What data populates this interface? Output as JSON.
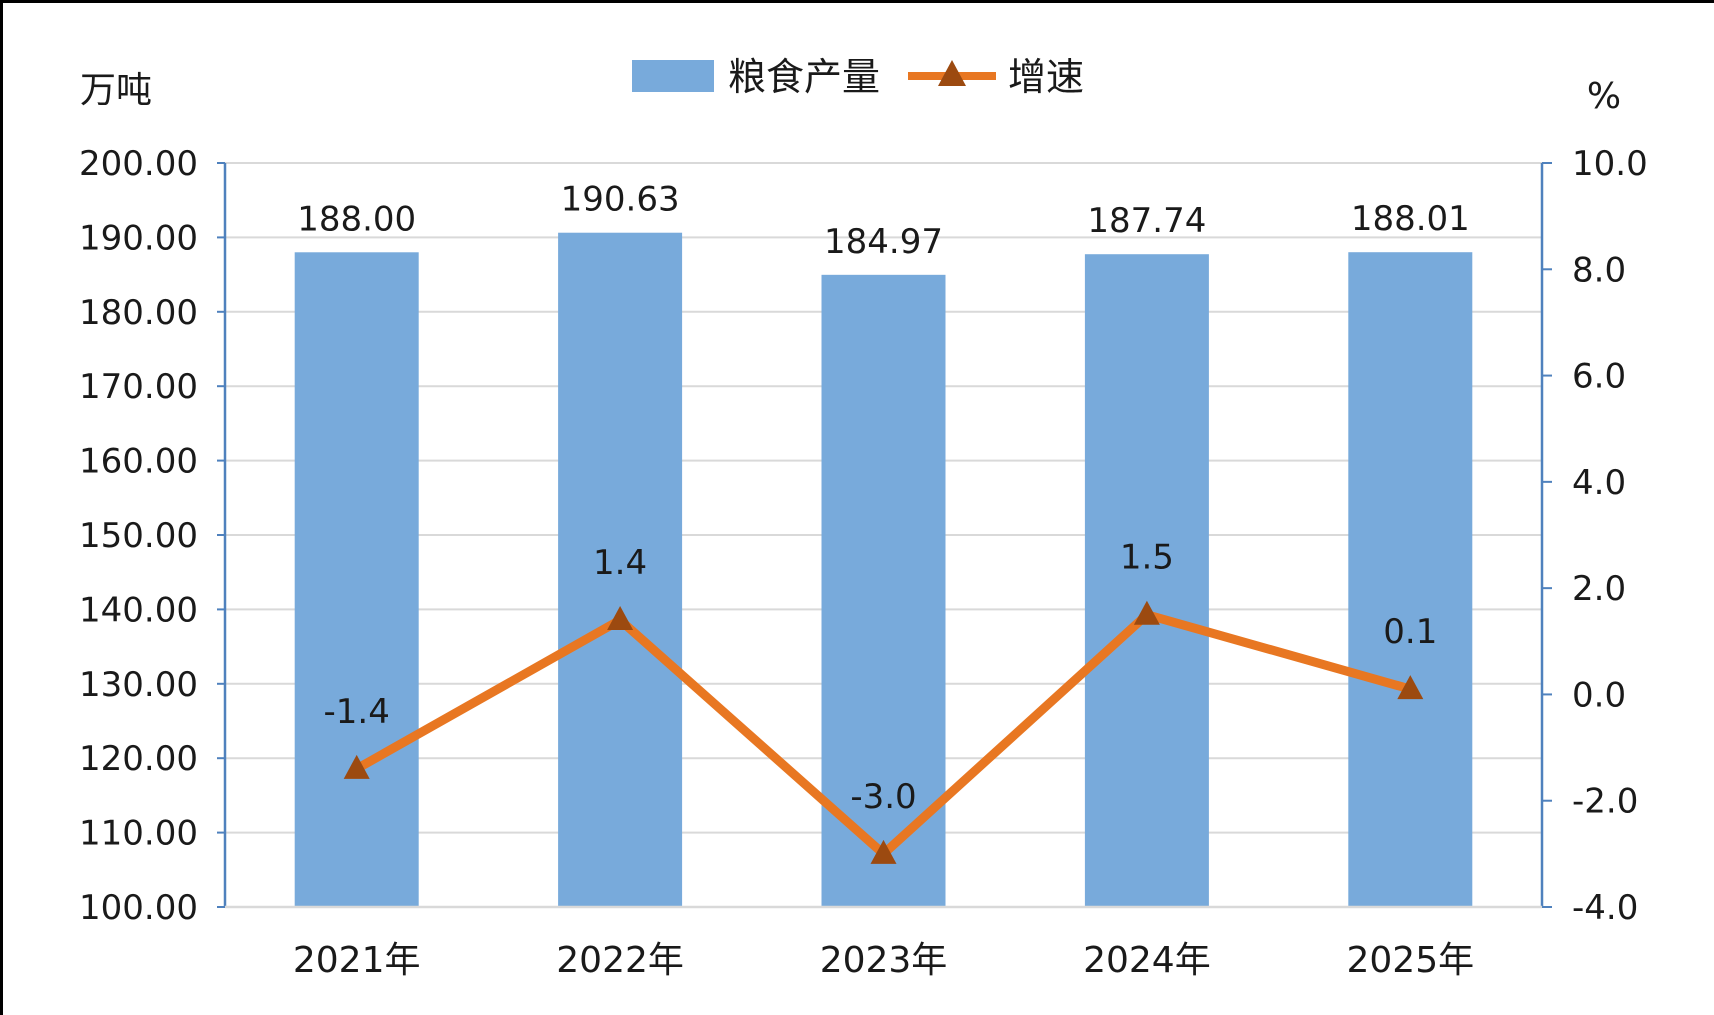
{
  "chart_data": {
    "type": "bar",
    "categories": [
      "2021年",
      "2022年",
      "2023年",
      "2024年",
      "2025年"
    ],
    "series": [
      {
        "name": "粮食产量",
        "type": "bar",
        "axis": "left",
        "values": [
          188.0,
          190.63,
          184.97,
          187.74,
          188.01
        ],
        "labels": [
          "188.00",
          "190.63",
          "184.97",
          "187.74",
          "188.01"
        ],
        "color": "#78aadb"
      },
      {
        "name": "增速",
        "type": "line",
        "axis": "right",
        "marker": "triangle",
        "values": [
          -1.4,
          1.4,
          -3.0,
          1.5,
          0.1
        ],
        "labels": [
          "-1.4",
          "1.4",
          "-3.0",
          "1.5",
          "0.1"
        ],
        "color": "#e87722",
        "marker_color": "#9c4a10"
      }
    ],
    "left_axis": {
      "unit": "万吨",
      "ylim": [
        100,
        200
      ],
      "ticks": [
        "100.00",
        "110.00",
        "120.00",
        "130.00",
        "140.00",
        "150.00",
        "160.00",
        "170.00",
        "180.00",
        "190.00",
        "200.00"
      ]
    },
    "right_axis": {
      "unit": "%",
      "ylim": [
        -4,
        10
      ],
      "ticks": [
        "-4.0",
        "-2.0",
        "0.0",
        "2.0",
        "4.0",
        "6.0",
        "8.0",
        "10.0"
      ]
    },
    "legend_position": "top-center",
    "grid": true,
    "axis_color": "#4f81bd",
    "grid_color": "#d9d9d9"
  }
}
